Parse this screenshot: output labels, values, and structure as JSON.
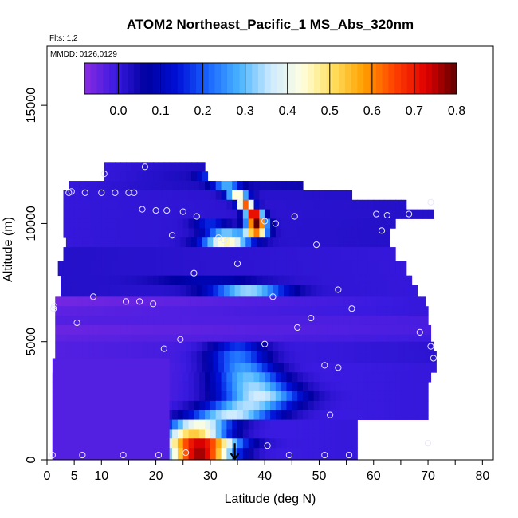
{
  "chart_data": {
    "type": "heatmap",
    "title": "ATOM2 Northeast_Pacific_1 MS_Abs_320nm",
    "flights_label": "Flts: 1,2",
    "dates_label": "MMDD: 0126,0129",
    "xlabel": "Latitude (deg N)",
    "ylabel": "Altitude (m)",
    "xlim": [
      0,
      82
    ],
    "ylim": [
      0,
      17500
    ],
    "x_ticks": [
      0,
      5,
      10,
      20,
      30,
      40,
      50,
      60,
      70,
      80
    ],
    "x_tick_labels": [
      "0",
      "5",
      "10",
      "20",
      "30",
      "40",
      "50",
      "60",
      "70",
      "80"
    ],
    "x_minor_ticks": [
      15,
      25,
      35,
      45,
      55,
      65,
      75
    ],
    "y_ticks": [
      0,
      5000,
      10000,
      15000
    ],
    "y_tick_labels": [
      "0",
      "5000",
      "10000",
      "15000"
    ],
    "colorbar": {
      "min": -0.08,
      "max": 0.8,
      "ticks": [
        0.0,
        0.1,
        0.2,
        0.3,
        0.4,
        0.5,
        0.6,
        0.7,
        0.8
      ],
      "tick_labels": [
        "0.0",
        "0.1",
        "0.2",
        "0.3",
        "0.4",
        "0.5",
        "0.6",
        "0.7",
        "0.8"
      ],
      "colors": [
        "#8a2be2",
        "#3a1ae0",
        "#0000a0",
        "#0010d8",
        "#1a66ff",
        "#48b4ff",
        "#cdeaff",
        "#ffffe0",
        "#ffe060",
        "#ffa000",
        "#ff4000",
        "#e00000",
        "#600000"
      ]
    },
    "layers": [
      {
        "y0": 12200,
        "y1": 12600,
        "x0": 10.5,
        "x1": 29.0,
        "v0": 0.0,
        "v1": 0.03,
        "peaks": []
      },
      {
        "y0": 11800,
        "y1": 12200,
        "x0": 10.5,
        "x1": 29.5,
        "v0": 0.0,
        "v1": 0.04,
        "peaks": [
          {
            "x": 29,
            "w": 1.5,
            "a": 0.12
          }
        ]
      },
      {
        "y0": 11400,
        "y1": 11800,
        "x0": 4.0,
        "x1": 47.0,
        "v0": 0.0,
        "v1": 0.05,
        "peaks": [
          {
            "x": 33,
            "w": 2.5,
            "a": 0.25
          }
        ]
      },
      {
        "y0": 11000,
        "y1": 11400,
        "x0": 3.0,
        "x1": 56.0,
        "v0": 0.0,
        "v1": 0.02,
        "peaks": [
          {
            "x": 35,
            "w": 2.0,
            "a": 0.45
          }
        ]
      },
      {
        "y0": 10600,
        "y1": 11000,
        "x0": 3.0,
        "x1": 66.0,
        "v0": 0.0,
        "v1": 0.02,
        "peaks": [
          {
            "x": 36.5,
            "w": 1.5,
            "a": 0.62
          }
        ]
      },
      {
        "y0": 10200,
        "y1": 10600,
        "x0": 3.0,
        "x1": 71.0,
        "v0": 0.0,
        "v1": 0.02,
        "peaks": [
          {
            "x": 38,
            "w": 1.5,
            "a": 0.78
          }
        ]
      },
      {
        "y0": 9800,
        "y1": 10200,
        "x0": 3.0,
        "x1": 64.0,
        "v0": 0.0,
        "v1": 0.02,
        "peaks": [
          {
            "x": 38.5,
            "w": 1.8,
            "a": 0.8
          },
          {
            "x": 30,
            "w": 3.0,
            "a": 0.15
          }
        ]
      },
      {
        "y0": 9400,
        "y1": 9800,
        "x0": 3.0,
        "x1": 63.0,
        "v0": 0.0,
        "v1": 0.02,
        "peaks": [
          {
            "x": 33,
            "w": 4.0,
            "a": 0.3
          },
          {
            "x": 38.5,
            "w": 2.0,
            "a": 0.55
          }
        ]
      },
      {
        "y0": 9000,
        "y1": 9400,
        "x0": 3.5,
        "x1": 63.0,
        "v0": 0.0,
        "v1": 0.02,
        "peaks": [
          {
            "x": 33,
            "w": 4.5,
            "a": 0.45
          }
        ]
      },
      {
        "y0": 8400,
        "y1": 9000,
        "x0": 3.0,
        "x1": 64.0,
        "v0": 0.02,
        "v1": 0.0,
        "peaks": []
      },
      {
        "y0": 7800,
        "y1": 8400,
        "x0": 2.0,
        "x1": 66.0,
        "v0": 0.02,
        "v1": 0.0,
        "peaks": []
      },
      {
        "y0": 7400,
        "y1": 7800,
        "x0": 2.5,
        "x1": 67.0,
        "v0": 0.02,
        "v1": 0.0,
        "peaks": [
          {
            "x": 30,
            "w": 10.0,
            "a": 0.08
          }
        ]
      },
      {
        "y0": 6900,
        "y1": 7400,
        "x0": 2.5,
        "x1": 68.0,
        "v0": 0.02,
        "v1": 0.0,
        "peaks": [
          {
            "x": 37,
            "w": 7.0,
            "a": 0.32
          }
        ]
      },
      {
        "y0": 6500,
        "y1": 6900,
        "x0": 1.5,
        "x1": 69.5,
        "v0": -0.06,
        "v1": 0.0,
        "peaks": []
      },
      {
        "y0": 6100,
        "y1": 6500,
        "x0": 1.5,
        "x1": 70.0,
        "v0": -0.04,
        "v1": 0.0,
        "peaks": []
      },
      {
        "y0": 5700,
        "y1": 6100,
        "x0": 1.5,
        "x1": 70.0,
        "v0": -0.03,
        "v1": -0.02,
        "peaks": []
      },
      {
        "y0": 5300,
        "y1": 5700,
        "x0": 1.5,
        "x1": 70.5,
        "v0": -0.05,
        "v1": -0.02,
        "peaks": []
      },
      {
        "y0": 5000,
        "y1": 5300,
        "x0": 1.5,
        "x1": 70.5,
        "v0": -0.04,
        "v1": -0.01,
        "peaks": []
      },
      {
        "y0": 4600,
        "y1": 5000,
        "x0": 1.5,
        "x1": 71.0,
        "v0": -0.03,
        "v1": 0.01,
        "peaks": [
          {
            "x": 35,
            "w": 5.0,
            "a": 0.18
          }
        ]
      },
      {
        "y0": 4100,
        "y1": 4600,
        "x0": 1.5,
        "x1": 71.5,
        "v0": -0.03,
        "v1": 0.01,
        "peaks": [
          {
            "x": 35,
            "w": 5.5,
            "a": 0.24
          }
        ]
      },
      {
        "y0": 3700,
        "y1": 4100,
        "x0": 1.5,
        "x1": 71.5,
        "v0": -0.03,
        "v1": 0.0,
        "peaks": [
          {
            "x": 36,
            "w": 6.0,
            "a": 0.28
          }
        ]
      },
      {
        "y0": 3300,
        "y1": 3700,
        "x0": 1.0,
        "x1": 70.5,
        "v0": -0.03,
        "v1": 0.0,
        "peaks": [
          {
            "x": 37,
            "w": 6.5,
            "a": 0.32
          }
        ]
      },
      {
        "y0": 2900,
        "y1": 3300,
        "x0": 1.0,
        "x1": 70.0,
        "v0": -0.03,
        "v1": 0.0,
        "peaks": [
          {
            "x": 38,
            "w": 7.0,
            "a": 0.35
          }
        ]
      },
      {
        "y0": 2500,
        "y1": 2900,
        "x0": 1.0,
        "x1": 70.0,
        "v0": -0.03,
        "v1": 0.0,
        "peaks": [
          {
            "x": 39,
            "w": 7.5,
            "a": 0.38
          }
        ]
      },
      {
        "y0": 2100,
        "y1": 2500,
        "x0": 1.0,
        "x1": 70.0,
        "v0": -0.03,
        "v1": 0.0,
        "peaks": [
          {
            "x": 37,
            "w": 8.0,
            "a": 0.36
          }
        ]
      },
      {
        "y0": 1700,
        "y1": 2100,
        "x0": 1.0,
        "x1": 70.0,
        "v0": -0.03,
        "v1": 0.0,
        "peaks": [
          {
            "x": 34,
            "w": 8.0,
            "a": 0.38
          }
        ]
      },
      {
        "y0": 1300,
        "y1": 1700,
        "x0": 1.0,
        "x1": 57.0,
        "v0": -0.03,
        "v1": 0.0,
        "peaks": [
          {
            "x": 28,
            "w": 6.0,
            "a": 0.44
          }
        ]
      },
      {
        "y0": 900,
        "y1": 1300,
        "x0": 1.0,
        "x1": 57.0,
        "v0": -0.03,
        "v1": 0.0,
        "peaks": [
          {
            "x": 27,
            "w": 6.0,
            "a": 0.55
          }
        ]
      },
      {
        "y0": 500,
        "y1": 900,
        "x0": 1.0,
        "x1": 57.0,
        "v0": -0.03,
        "v1": 0.0,
        "peaks": [
          {
            "x": 28,
            "w": 7.0,
            "a": 0.75
          }
        ]
      },
      {
        "y0": 0,
        "y1": 500,
        "x0": 1.0,
        "x1": 57.0,
        "v0": -0.03,
        "v1": 0.0,
        "peaks": [
          {
            "x": 28,
            "w": 6.0,
            "a": 0.78
          }
        ]
      }
    ],
    "cutout": {
      "x0": 1.0,
      "x1": 22.5,
      "y0": 0,
      "y1": 4300,
      "v0": -0.03,
      "v1": -0.03
    },
    "samples": [
      [
        10.5,
        12100
      ],
      [
        18,
        12400
      ],
      [
        4,
        11300
      ],
      [
        4.5,
        11350
      ],
      [
        7,
        11300
      ],
      [
        10,
        11300
      ],
      [
        12.5,
        11300
      ],
      [
        15,
        11300
      ],
      [
        16,
        11300
      ],
      [
        17.5,
        10600
      ],
      [
        20,
        10550
      ],
      [
        22,
        10550
      ],
      [
        25,
        10500
      ],
      [
        27.5,
        10300
      ],
      [
        40,
        10100
      ],
      [
        42,
        10000
      ],
      [
        45.5,
        10300
      ],
      [
        60.5,
        10400
      ],
      [
        62.5,
        10350
      ],
      [
        66.5,
        10400
      ],
      [
        70.5,
        10900
      ],
      [
        23,
        9500
      ],
      [
        31.5,
        9400
      ],
      [
        32.5,
        9300
      ],
      [
        49.5,
        9100
      ],
      [
        61.5,
        9700
      ],
      [
        27,
        7900
      ],
      [
        35,
        8300
      ],
      [
        41.5,
        6900
      ],
      [
        53.5,
        7200
      ],
      [
        17,
        6700
      ],
      [
        14.5,
        6700
      ],
      [
        19.5,
        6600
      ],
      [
        8.5,
        6900
      ],
      [
        1.2,
        6400
      ],
      [
        1.3,
        6500
      ],
      [
        5.5,
        5800
      ],
      [
        56,
        6400
      ],
      [
        48.5,
        6000
      ],
      [
        46,
        5600
      ],
      [
        68.5,
        5400
      ],
      [
        70.5,
        4800
      ],
      [
        40,
        4900
      ],
      [
        21.5,
        4700
      ],
      [
        24.5,
        5100
      ],
      [
        51,
        4000
      ],
      [
        53.5,
        3900
      ],
      [
        71,
        4300
      ],
      [
        52,
        1900
      ],
      [
        70,
        700
      ],
      [
        40.5,
        600
      ],
      [
        44.5,
        200
      ],
      [
        51,
        200
      ],
      [
        55.5,
        200
      ],
      [
        1,
        200
      ],
      [
        6.5,
        200
      ],
      [
        14,
        200
      ],
      [
        20.5,
        200
      ],
      [
        25.5,
        300
      ]
    ],
    "arrow": {
      "x": 34.5,
      "y_from": 700,
      "y_to": 0
    }
  }
}
